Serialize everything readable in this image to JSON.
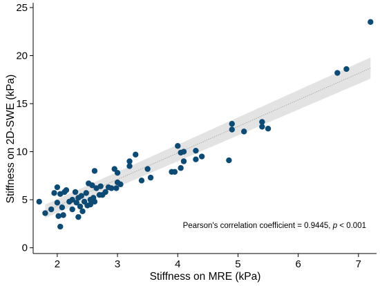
{
  "chart_data": {
    "type": "scatter",
    "xlabel": "Stiffness on MRE (kPa)",
    "ylabel": "Stiffness on 2D-SWE (kPa)",
    "xlim": [
      1.6,
      7.3
    ],
    "ylim": [
      -0.6,
      25.5
    ],
    "xticks": [
      2,
      3,
      4,
      5,
      6,
      7
    ],
    "yticks": [
      0,
      5,
      10,
      15,
      20,
      25
    ],
    "annotation": {
      "prefix": "Pearson's correlation coefficient = 0.9445, ",
      "p_symbol": "p",
      "suffix": " < 0.001"
    },
    "regression": {
      "x_start": 1.8,
      "y_start": 3.8,
      "x_end": 7.2,
      "y_end": 18.7
    },
    "confidence_band": {
      "x": [
        1.8,
        7.2
      ],
      "lower": [
        3.1,
        17.6
      ],
      "upper": [
        4.5,
        19.8
      ]
    },
    "colors": {
      "point": "#0d4a74",
      "band": "#e3e3e3",
      "line": "#aaaaaa"
    },
    "points": [
      [
        1.7,
        4.8
      ],
      [
        1.8,
        3.6
      ],
      [
        1.9,
        4.0
      ],
      [
        1.95,
        5.7
      ],
      [
        2.0,
        6.3
      ],
      [
        2.0,
        4.7
      ],
      [
        2.02,
        3.3
      ],
      [
        2.05,
        2.2
      ],
      [
        2.05,
        5.6
      ],
      [
        2.08,
        4.2
      ],
      [
        2.1,
        3.4
      ],
      [
        2.12,
        5.8
      ],
      [
        2.15,
        6.0
      ],
      [
        2.2,
        4.8
      ],
      [
        2.25,
        5.0
      ],
      [
        2.25,
        4.0
      ],
      [
        2.3,
        5.8
      ],
      [
        2.32,
        4.7
      ],
      [
        2.35,
        5.2
      ],
      [
        2.35,
        3.2
      ],
      [
        2.38,
        4.3
      ],
      [
        2.4,
        5.4
      ],
      [
        2.42,
        3.8
      ],
      [
        2.45,
        4.8
      ],
      [
        2.48,
        5.7
      ],
      [
        2.5,
        4.4
      ],
      [
        2.52,
        6.7
      ],
      [
        2.55,
        5.0
      ],
      [
        2.55,
        4.5
      ],
      [
        2.58,
        6.5
      ],
      [
        2.6,
        5.2
      ],
      [
        2.62,
        4.8
      ],
      [
        2.62,
        8.0
      ],
      [
        2.65,
        6.2
      ],
      [
        2.7,
        5.5
      ],
      [
        2.72,
        6.4
      ],
      [
        2.75,
        5.5
      ],
      [
        2.8,
        5.8
      ],
      [
        2.85,
        6.3
      ],
      [
        2.9,
        6.2
      ],
      [
        2.95,
        8.2
      ],
      [
        2.98,
        6.2
      ],
      [
        3.0,
        7.8
      ],
      [
        3.0,
        6.8
      ],
      [
        3.05,
        6.6
      ],
      [
        3.2,
        8.5
      ],
      [
        3.2,
        9.0
      ],
      [
        3.3,
        9.7
      ],
      [
        3.4,
        7.0
      ],
      [
        3.5,
        8.2
      ],
      [
        3.55,
        7.3
      ],
      [
        3.9,
        7.9
      ],
      [
        3.95,
        7.9
      ],
      [
        4.0,
        10.6
      ],
      [
        4.05,
        9.9
      ],
      [
        4.05,
        8.3
      ],
      [
        4.1,
        9.0
      ],
      [
        4.1,
        10.0
      ],
      [
        4.3,
        10.1
      ],
      [
        4.3,
        9.2
      ],
      [
        4.4,
        9.5
      ],
      [
        4.85,
        9.1
      ],
      [
        4.9,
        12.9
      ],
      [
        4.9,
        12.3
      ],
      [
        5.1,
        12.1
      ],
      [
        5.4,
        13.1
      ],
      [
        5.4,
        12.6
      ],
      [
        5.5,
        12.4
      ],
      [
        6.65,
        18.2
      ],
      [
        6.8,
        18.6
      ],
      [
        7.2,
        23.5
      ]
    ]
  }
}
